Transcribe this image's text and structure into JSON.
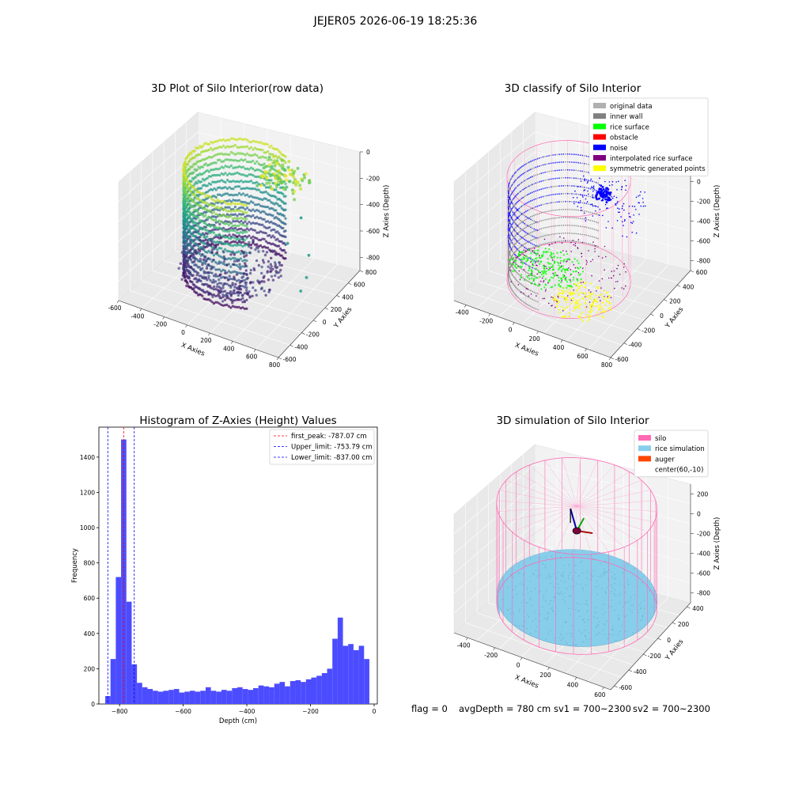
{
  "suptitle": "JEJER05 2026-06-19 18:25:36",
  "status_line": {
    "flag": "flag = 0",
    "avg_depth": "avgDepth = 780 cm",
    "sv1": "sv1 = 700~2300",
    "sv2": "sv2 = 700~2300"
  },
  "chart_data": [
    {
      "type": "scatter",
      "projection": "3d",
      "title": "3D Plot of Silo Interior(row data)",
      "xlabel": "X Axies",
      "ylabel": "Y Axies",
      "zlabel": "Z Axies (Depth)",
      "x_ticks": [
        -600,
        -400,
        -200,
        0,
        200,
        400,
        600,
        800
      ],
      "y_ticks": [
        -600,
        -400,
        -200,
        0,
        200,
        400,
        600,
        800
      ],
      "z_ticks": [
        0,
        -200,
        -400,
        -600,
        -800
      ],
      "xlim": [
        -600,
        800
      ],
      "ylim": [
        -600,
        800
      ],
      "zlim": [
        -900,
        0
      ],
      "colormap": "viridis",
      "grid": true
    },
    {
      "type": "scatter",
      "projection": "3d",
      "title": "3D classify of Silo Interior",
      "xlabel": "X Axies",
      "ylabel": "Y Axies",
      "zlabel": "Z Axies (Depth)",
      "x_ticks": [
        -400,
        -200,
        0,
        200,
        400,
        600,
        800
      ],
      "y_ticks": [
        -600,
        -400,
        -200,
        0,
        200,
        400,
        600
      ],
      "z_ticks": [
        200,
        0,
        -200,
        -400,
        -600,
        -800
      ],
      "xlim": [
        -500,
        800
      ],
      "ylim": [
        -600,
        600
      ],
      "zlim": [
        -900,
        300
      ],
      "legend_position": "top-right",
      "legend": [
        {
          "label": "original data",
          "color": "#b0b0b0"
        },
        {
          "label": "inner wall",
          "color": "#808080"
        },
        {
          "label": "rice surface",
          "color": "#00ff00"
        },
        {
          "label": "obstacle",
          "color": "#ff0000"
        },
        {
          "label": "noise",
          "color": "#0000ff"
        },
        {
          "label": "interpolated rice surface",
          "color": "#800080"
        },
        {
          "label": "symmetric generated points",
          "color": "#ffff00"
        }
      ],
      "grid": true
    },
    {
      "type": "bar",
      "title": "Histogram of Z-Axies (Height) Values",
      "xlabel": "Depth (cm)",
      "ylabel": "Frequency",
      "bar_color": "#4c4cff",
      "xlim": [
        -865,
        10
      ],
      "ylim": [
        0,
        1570
      ],
      "x_ticks": [
        -800,
        -600,
        -400,
        -200,
        0
      ],
      "y_ticks": [
        0,
        200,
        400,
        600,
        800,
        1000,
        1200,
        1400
      ],
      "bin_start": -845,
      "bin_width": 16.6,
      "values": [
        45,
        255,
        720,
        1500,
        580,
        225,
        120,
        95,
        85,
        75,
        70,
        75,
        80,
        85,
        65,
        70,
        75,
        70,
        75,
        95,
        75,
        70,
        80,
        75,
        90,
        95,
        85,
        80,
        90,
        105,
        100,
        95,
        115,
        125,
        100,
        130,
        135,
        125,
        140,
        150,
        160,
        175,
        200,
        370,
        490,
        330,
        340,
        305,
        330,
        255
      ],
      "vlines": [
        {
          "label": "first_peak: -787.07 cm",
          "x": -787.07,
          "color": "#ff0000"
        },
        {
          "label": "Upper_limit: -753.79 cm",
          "x": -753.79,
          "color": "#0000ff"
        },
        {
          "label": "Lower_limit: -837.00 cm",
          "x": -837.0,
          "color": "#0000ff"
        }
      ],
      "legend_position": "top-right"
    },
    {
      "type": "scatter",
      "projection": "3d",
      "title": "3D simulation of Silo Interior",
      "xlabel": "X Axies",
      "ylabel": "Y Axies",
      "zlabel": "Z Axies (Depth)",
      "x_ticks": [
        -400,
        -200,
        0,
        200,
        400,
        600
      ],
      "y_ticks": [
        -600,
        -400,
        -200,
        0,
        200,
        400
      ],
      "z_ticks": [
        200,
        0,
        -200,
        -400,
        -600,
        -800
      ],
      "xlim": [
        -500,
        650
      ],
      "ylim": [
        -650,
        450
      ],
      "zlim": [
        -900,
        300
      ],
      "legend_position": "top-right",
      "legend": [
        {
          "label": "silo",
          "color": "#ff69b4"
        },
        {
          "label": "rice simulation",
          "color": "#87ceeb"
        },
        {
          "label": "auger",
          "color": "#ff4500"
        },
        {
          "label": "center(60,-10)",
          "color": "#ffffff"
        }
      ],
      "grid": true
    }
  ]
}
